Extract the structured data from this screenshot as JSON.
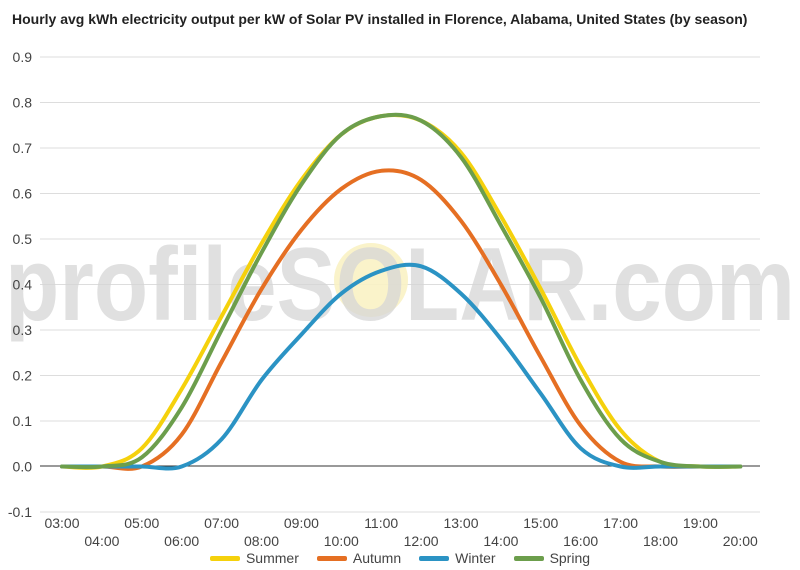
{
  "chart_data": {
    "type": "line",
    "title": "Hourly avg kWh electricity output per kW of Solar PV installed in Florence, Alabama, United States (by season)",
    "watermark": "profileSOLAR.com",
    "x_labels": [
      "03:00",
      "04:00",
      "05:00",
      "06:00",
      "07:00",
      "08:00",
      "09:00",
      "10:00",
      "11:00",
      "12:00",
      "13:00",
      "14:00",
      "15:00",
      "16:00",
      "17:00",
      "18:00",
      "19:00",
      "20:00"
    ],
    "ylim": [
      -0.1,
      0.9
    ],
    "yticks": [
      "-0.1",
      "0.0",
      "0.1",
      "0.2",
      "0.3",
      "0.4",
      "0.5",
      "0.6",
      "0.7",
      "0.8",
      "0.9"
    ],
    "grid": true,
    "legend_position": "bottom",
    "colors": {
      "Summer": "#f5d10c",
      "Autumn": "#e56f23",
      "Winter": "#2b93c4",
      "Spring": "#6c9e4c"
    },
    "series": [
      {
        "name": "Summer",
        "color": "#f5d10c",
        "values": [
          0.0,
          0.0,
          0.04,
          0.17,
          0.33,
          0.49,
          0.63,
          0.73,
          0.77,
          0.76,
          0.69,
          0.55,
          0.39,
          0.22,
          0.08,
          0.01,
          0.0,
          0.0
        ]
      },
      {
        "name": "Autumn",
        "color": "#e56f23",
        "values": [
          0.0,
          0.0,
          0.0,
          0.07,
          0.23,
          0.39,
          0.52,
          0.61,
          0.65,
          0.63,
          0.54,
          0.4,
          0.24,
          0.09,
          0.01,
          0.0,
          0.0,
          0.0
        ]
      },
      {
        "name": "Winter",
        "color": "#2b93c4",
        "values": [
          0.0,
          0.0,
          0.0,
          0.0,
          0.06,
          0.19,
          0.29,
          0.38,
          0.43,
          0.44,
          0.38,
          0.28,
          0.16,
          0.04,
          0.0,
          0.0,
          0.0,
          0.0
        ]
      },
      {
        "name": "Spring",
        "color": "#6c9e4c",
        "values": [
          0.0,
          0.0,
          0.02,
          0.13,
          0.3,
          0.47,
          0.62,
          0.73,
          0.77,
          0.76,
          0.68,
          0.53,
          0.37,
          0.19,
          0.06,
          0.01,
          0.0,
          0.0
        ]
      }
    ]
  }
}
